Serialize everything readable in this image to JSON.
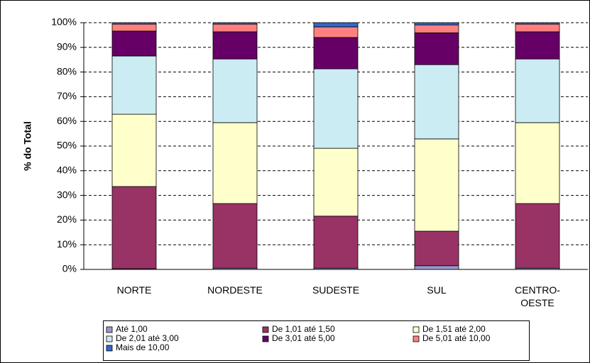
{
  "chart_data": {
    "type": "stacked_bar",
    "y_label": "% do Total",
    "categories": [
      "NORTE",
      "NORDESTE",
      "SUDESTE",
      "SUL",
      "CENTRO-OESTE"
    ],
    "series": [
      {
        "name": "Até 1,00",
        "color": "#9999cc",
        "values": [
          0.3,
          0.5,
          0.5,
          1.5,
          0.5
        ]
      },
      {
        "name": "De 1,01 até 1,50",
        "color": "#993366",
        "values": [
          33.3,
          26.2,
          21.1,
          14.0,
          26.2
        ]
      },
      {
        "name": "De 1,51 até 2,00",
        "color": "#ffffcc",
        "values": [
          29.3,
          32.8,
          27.5,
          37.4,
          32.8
        ]
      },
      {
        "name": "De 2,01 até 3,00",
        "color": "#ccecf4",
        "values": [
          23.6,
          25.8,
          32.2,
          30.1,
          25.8
        ]
      },
      {
        "name": "De 3,01 até 5,00",
        "color": "#660066",
        "values": [
          10.1,
          11.0,
          12.7,
          12.9,
          11.0
        ]
      },
      {
        "name": "De 5,01 até 10,00",
        "color": "#ff8080",
        "values": [
          2.8,
          3.1,
          4.3,
          3.2,
          3.1
        ]
      },
      {
        "name": "Mais de 10,00",
        "color": "#3366cc",
        "values": [
          0.6,
          0.6,
          1.7,
          0.9,
          0.6
        ]
      }
    ],
    "ylim": [
      0,
      100
    ],
    "yticks": [
      {
        "value": 0,
        "label": "0%"
      },
      {
        "value": 10,
        "label": "10%"
      },
      {
        "value": 20,
        "label": "20%"
      },
      {
        "value": 30,
        "label": "30%"
      },
      {
        "value": 40,
        "label": "40%"
      },
      {
        "value": 50,
        "label": "50%"
      },
      {
        "value": 60,
        "label": "60%"
      },
      {
        "value": 70,
        "label": "70%"
      },
      {
        "value": 80,
        "label": "80%"
      },
      {
        "value": 90,
        "label": "90%"
      },
      {
        "value": 100,
        "label": "100%"
      }
    ],
    "grid": true
  }
}
